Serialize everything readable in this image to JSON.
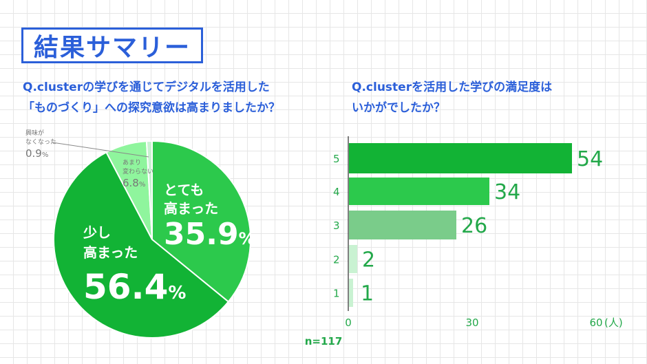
{
  "header": {
    "title": "結果サマリー"
  },
  "left": {
    "question_line1": "Q.clusterの学びを通じてデジタルを活用した",
    "question_line2": "「ものづくり」への探究意欲は高まりましたか？"
  },
  "right": {
    "question_line1": "Q.clusterを活用した学びの満足度は",
    "question_line2": "いかがでしたか？",
    "n_note": "n=117"
  },
  "colors": {
    "dark_green": "#12b335",
    "mid_green": "#2cc94c",
    "soft_green": "#7acc8a",
    "light_green": "#8ff59d",
    "pale_green": "#c9f2d2",
    "text_green": "#23a84a",
    "blue": "#2b5fd9"
  },
  "chart_data": [
    {
      "type": "pie",
      "slices": [
        {
          "label": "とても高まった",
          "line1": "とても",
          "line2": "高まった",
          "value": 35.9,
          "display": "35.9",
          "color": "#2cc94c"
        },
        {
          "label": "少し高まった",
          "line1": "少し",
          "line2": "高まった",
          "value": 56.4,
          "display": "56.4",
          "color": "#12b335"
        },
        {
          "label": "あまり変わらない",
          "line1": "あまり",
          "line2": "変わらない",
          "value": 6.8,
          "display": "6.8",
          "color": "#8ff59d"
        },
        {
          "label": "興味がなくなった",
          "line1": "興味が",
          "line2": "なくなった",
          "value": 0.9,
          "display": "0.9",
          "color": "#c9f2d2"
        }
      ],
      "unit": "%"
    },
    {
      "type": "bar",
      "orientation": "horizontal",
      "categories": [
        "5",
        "4",
        "3",
        "2",
        "1"
      ],
      "values": [
        54,
        34,
        26,
        2,
        1
      ],
      "colors": [
        "#12b335",
        "#2cc94c",
        "#7acc8a",
        "#c9f2d2",
        "#c9f2d2"
      ],
      "xticks": [
        "0",
        "30",
        "60"
      ],
      "xlim": [
        0,
        60
      ],
      "xunit": "(人)"
    }
  ]
}
